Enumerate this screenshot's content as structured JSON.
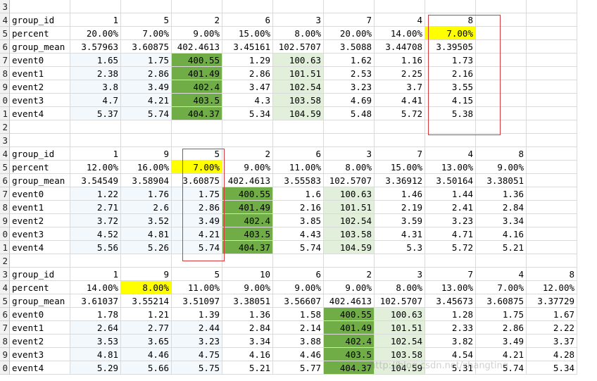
{
  "rows": [
    {
      "header": "3",
      "cells": []
    },
    {
      "header": "4",
      "cells": [
        {
          "v": "group_id",
          "a": "l"
        },
        {
          "v": "1"
        },
        {
          "v": "5"
        },
        {
          "v": "2"
        },
        {
          "v": "6"
        },
        {
          "v": "3"
        },
        {
          "v": "7"
        },
        {
          "v": "4"
        },
        {
          "v": "8"
        }
      ]
    },
    {
      "header": "5",
      "cells": [
        {
          "v": "percent",
          "a": "l"
        },
        {
          "v": "20.00%"
        },
        {
          "v": "7.00%"
        },
        {
          "v": "9.00%"
        },
        {
          "v": "15.00%"
        },
        {
          "v": "8.00%"
        },
        {
          "v": "20.00%"
        },
        {
          "v": "14.00%"
        },
        {
          "v": "7.00%",
          "h": "yellow"
        }
      ]
    },
    {
      "header": "6",
      "cells": [
        {
          "v": "group_mean",
          "a": "l"
        },
        {
          "v": "3.57963"
        },
        {
          "v": "3.60875"
        },
        {
          "v": "402.4613"
        },
        {
          "v": "3.45161"
        },
        {
          "v": "102.5707"
        },
        {
          "v": "3.5088"
        },
        {
          "v": "3.44708"
        },
        {
          "v": "3.39505"
        }
      ]
    },
    {
      "header": "7",
      "cells": [
        {
          "v": "event0",
          "a": "l"
        },
        {
          "v": "1.65"
        },
        {
          "v": "1.75"
        },
        {
          "v": "400.55",
          "h": "green"
        },
        {
          "v": "1.29"
        },
        {
          "v": "100.63",
          "h": "lightgreen"
        },
        {
          "v": "1.62"
        },
        {
          "v": "1.16"
        },
        {
          "v": "1.73"
        }
      ]
    },
    {
      "header": "8",
      "cells": [
        {
          "v": "event1",
          "a": "l"
        },
        {
          "v": "2.38"
        },
        {
          "v": "2.86"
        },
        {
          "v": "401.49",
          "h": "green"
        },
        {
          "v": "2.86"
        },
        {
          "v": "101.51",
          "h": "lightgreen"
        },
        {
          "v": "2.53"
        },
        {
          "v": "2.25"
        },
        {
          "v": "2.16"
        }
      ]
    },
    {
      "header": "9",
      "cells": [
        {
          "v": "event2",
          "a": "l"
        },
        {
          "v": "3.8"
        },
        {
          "v": "3.49"
        },
        {
          "v": "402.4",
          "h": "green"
        },
        {
          "v": "3.47"
        },
        {
          "v": "102.54",
          "h": "lightgreen"
        },
        {
          "v": "3.23"
        },
        {
          "v": "3.7"
        },
        {
          "v": "3.55"
        }
      ]
    },
    {
      "header": "0",
      "cells": [
        {
          "v": "event3",
          "a": "l"
        },
        {
          "v": "4.7"
        },
        {
          "v": "4.21"
        },
        {
          "v": "403.5",
          "h": "green"
        },
        {
          "v": "4.3"
        },
        {
          "v": "103.58",
          "h": "lightgreen"
        },
        {
          "v": "4.69"
        },
        {
          "v": "4.41"
        },
        {
          "v": "4.15"
        }
      ]
    },
    {
      "header": "1",
      "cells": [
        {
          "v": "event4",
          "a": "l"
        },
        {
          "v": "5.37"
        },
        {
          "v": "5.74"
        },
        {
          "v": "404.37",
          "h": "green"
        },
        {
          "v": "5.34"
        },
        {
          "v": "104.59",
          "h": "lightgreen"
        },
        {
          "v": "5.48"
        },
        {
          "v": "5.72"
        },
        {
          "v": "5.38"
        }
      ]
    },
    {
      "header": "2",
      "cells": []
    },
    {
      "header": "3",
      "cells": []
    },
    {
      "header": "4",
      "cells": [
        {
          "v": "group_id",
          "a": "l"
        },
        {
          "v": "1"
        },
        {
          "v": "9"
        },
        {
          "v": "5"
        },
        {
          "v": "2"
        },
        {
          "v": "6"
        },
        {
          "v": "3"
        },
        {
          "v": "7"
        },
        {
          "v": "4"
        },
        {
          "v": "8"
        }
      ]
    },
    {
      "header": "5",
      "cells": [
        {
          "v": "percent",
          "a": "l"
        },
        {
          "v": "12.00%"
        },
        {
          "v": "16.00%"
        },
        {
          "v": "7.00%",
          "h": "yellow"
        },
        {
          "v": "9.00%"
        },
        {
          "v": "11.00%"
        },
        {
          "v": "8.00%"
        },
        {
          "v": "15.00%"
        },
        {
          "v": "13.00%"
        },
        {
          "v": "9.00%"
        }
      ]
    },
    {
      "header": "6",
      "cells": [
        {
          "v": "group_mean",
          "a": "l"
        },
        {
          "v": "3.54549"
        },
        {
          "v": "3.58904"
        },
        {
          "v": "3.60875"
        },
        {
          "v": "402.4613"
        },
        {
          "v": "3.55583"
        },
        {
          "v": "102.5707"
        },
        {
          "v": "3.36912"
        },
        {
          "v": "3.50164"
        },
        {
          "v": "3.38051"
        }
      ]
    },
    {
      "header": "7",
      "cells": [
        {
          "v": "event0",
          "a": "l"
        },
        {
          "v": "1.22"
        },
        {
          "v": "1.76"
        },
        {
          "v": "1.75"
        },
        {
          "v": "400.55",
          "h": "green"
        },
        {
          "v": "1.6"
        },
        {
          "v": "100.63",
          "h": "lightgreen"
        },
        {
          "v": "1.46"
        },
        {
          "v": "1.44"
        },
        {
          "v": "1.36"
        }
      ]
    },
    {
      "header": "8",
      "cells": [
        {
          "v": "event1",
          "a": "l"
        },
        {
          "v": "2.71"
        },
        {
          "v": "2.6"
        },
        {
          "v": "2.86"
        },
        {
          "v": "401.49",
          "h": "green"
        },
        {
          "v": "2.16"
        },
        {
          "v": "101.51",
          "h": "lightgreen"
        },
        {
          "v": "2.19"
        },
        {
          "v": "2.41"
        },
        {
          "v": "2.84"
        }
      ]
    },
    {
      "header": "9",
      "cells": [
        {
          "v": "event2",
          "a": "l"
        },
        {
          "v": "3.72"
        },
        {
          "v": "3.52"
        },
        {
          "v": "3.49"
        },
        {
          "v": "402.4",
          "h": "green"
        },
        {
          "v": "3.85"
        },
        {
          "v": "102.54",
          "h": "lightgreen"
        },
        {
          "v": "3.59"
        },
        {
          "v": "3.23"
        },
        {
          "v": "3.34"
        }
      ]
    },
    {
      "header": "0",
      "cells": [
        {
          "v": "event3",
          "a": "l"
        },
        {
          "v": "4.52"
        },
        {
          "v": "4.81"
        },
        {
          "v": "4.21"
        },
        {
          "v": "403.5",
          "h": "green"
        },
        {
          "v": "4.43"
        },
        {
          "v": "103.58",
          "h": "lightgreen"
        },
        {
          "v": "4.31"
        },
        {
          "v": "4.71"
        },
        {
          "v": "4.16"
        }
      ]
    },
    {
      "header": "1",
      "cells": [
        {
          "v": "event4",
          "a": "l"
        },
        {
          "v": "5.56"
        },
        {
          "v": "5.26"
        },
        {
          "v": "5.74"
        },
        {
          "v": "404.37",
          "h": "green"
        },
        {
          "v": "5.74"
        },
        {
          "v": "104.59",
          "h": "lightgreen"
        },
        {
          "v": "5.3"
        },
        {
          "v": "5.72"
        },
        {
          "v": "5.21"
        }
      ]
    },
    {
      "header": "2",
      "cells": []
    },
    {
      "header": "3",
      "cells": [
        {
          "v": "group_id",
          "a": "l"
        },
        {
          "v": "1"
        },
        {
          "v": "9"
        },
        {
          "v": "5"
        },
        {
          "v": "10"
        },
        {
          "v": "6"
        },
        {
          "v": "2"
        },
        {
          "v": "3"
        },
        {
          "v": "7"
        },
        {
          "v": "4"
        },
        {
          "v": "8"
        }
      ]
    },
    {
      "header": "4",
      "cells": [
        {
          "v": "percent",
          "a": "l"
        },
        {
          "v": "14.00%"
        },
        {
          "v": "8.00%",
          "h": "yellow"
        },
        {
          "v": "11.00%"
        },
        {
          "v": "9.00%"
        },
        {
          "v": "9.00%"
        },
        {
          "v": "9.00%"
        },
        {
          "v": "8.00%"
        },
        {
          "v": "13.00%"
        },
        {
          "v": "7.00%"
        },
        {
          "v": "12.00%"
        }
      ]
    },
    {
      "header": "5",
      "cells": [
        {
          "v": "group_mean",
          "a": "l"
        },
        {
          "v": "3.61037"
        },
        {
          "v": "3.55214"
        },
        {
          "v": "3.51097"
        },
        {
          "v": "3.38051"
        },
        {
          "v": "3.56607"
        },
        {
          "v": "402.4613"
        },
        {
          "v": "102.5707"
        },
        {
          "v": "3.45673"
        },
        {
          "v": "3.60875"
        },
        {
          "v": "3.37729"
        }
      ]
    },
    {
      "header": "6",
      "cells": [
        {
          "v": "event0",
          "a": "l"
        },
        {
          "v": "1.78"
        },
        {
          "v": "1.21"
        },
        {
          "v": "1.39"
        },
        {
          "v": "1.36"
        },
        {
          "v": "1.58"
        },
        {
          "v": "400.55",
          "h": "green"
        },
        {
          "v": "100.63",
          "h": "lightgreen"
        },
        {
          "v": "1.28"
        },
        {
          "v": "1.75"
        },
        {
          "v": "1.67"
        }
      ]
    },
    {
      "header": "7",
      "cells": [
        {
          "v": "event1",
          "a": "l"
        },
        {
          "v": "2.64"
        },
        {
          "v": "2.77"
        },
        {
          "v": "2.44"
        },
        {
          "v": "2.84"
        },
        {
          "v": "2.14"
        },
        {
          "v": "401.49",
          "h": "green"
        },
        {
          "v": "101.51",
          "h": "lightgreen"
        },
        {
          "v": "2.33"
        },
        {
          "v": "2.86"
        },
        {
          "v": "2.22"
        }
      ]
    },
    {
      "header": "8",
      "cells": [
        {
          "v": "event2",
          "a": "l"
        },
        {
          "v": "3.53"
        },
        {
          "v": "3.65"
        },
        {
          "v": "3.23"
        },
        {
          "v": "3.34"
        },
        {
          "v": "3.88"
        },
        {
          "v": "402.4",
          "h": "green"
        },
        {
          "v": "102.54",
          "h": "lightgreen"
        },
        {
          "v": "3.82"
        },
        {
          "v": "3.49"
        },
        {
          "v": "3.37"
        }
      ]
    },
    {
      "header": "9",
      "cells": [
        {
          "v": "event3",
          "a": "l"
        },
        {
          "v": "4.81"
        },
        {
          "v": "4.46"
        },
        {
          "v": "4.75"
        },
        {
          "v": "4.16"
        },
        {
          "v": "4.46"
        },
        {
          "v": "403.5",
          "h": "green"
        },
        {
          "v": "103.58",
          "h": "lightgreen"
        },
        {
          "v": "4.54"
        },
        {
          "v": "4.21"
        },
        {
          "v": "4.28"
        }
      ]
    },
    {
      "header": "0",
      "cells": [
        {
          "v": "event4",
          "a": "l"
        },
        {
          "v": "5.29"
        },
        {
          "v": "5.66"
        },
        {
          "v": "5.75"
        },
        {
          "v": "5.21"
        },
        {
          "v": "5.77"
        },
        {
          "v": "404.37",
          "h": "green"
        },
        {
          "v": "104.59",
          "h": "lightgreen"
        },
        {
          "v": "5.31"
        },
        {
          "v": "5.74"
        },
        {
          "v": "5.34"
        }
      ]
    }
  ],
  "watermark": "http://blog.csdn.net/zhangting",
  "colors": {
    "yellow": "#ffff00",
    "green": "#70ad47",
    "lightgreen": "#e2efda",
    "box": "#d9363e"
  }
}
